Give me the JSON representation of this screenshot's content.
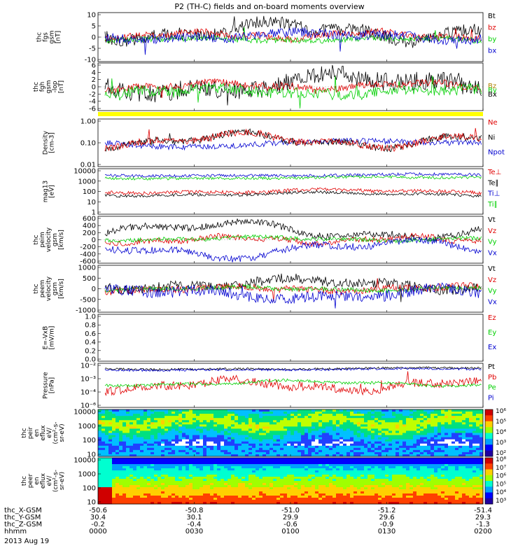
{
  "title": "P2 (TH-C) fields and on-board moments overview",
  "time_axis": {
    "rows": [
      {
        "label": "thc_X-GSM",
        "values": [
          "-50.6",
          "-50.8",
          "-51.0",
          "-51.2",
          "-51.4"
        ]
      },
      {
        "label": "thc_Y-GSM",
        "values": [
          "30.4",
          "30.1",
          "29.9",
          "29.6",
          "29.3"
        ]
      },
      {
        "label": "thc_Z-GSM",
        "values": [
          "-0.2",
          "-0.4",
          "-0.6",
          "-0.9",
          "-1.3"
        ]
      },
      {
        "label": "hhmm",
        "values": [
          "0000",
          "0030",
          "0100",
          "0130",
          "0200"
        ]
      }
    ],
    "date": "2013 Aug 19"
  },
  "colors": {
    "black": "#000000",
    "red": "#e00000",
    "green": "#00d000",
    "blue": "#0000d0",
    "yellow": "#ffff00"
  },
  "chart_data": [
    {
      "type": "line",
      "ylabel": [
        "thc",
        "fgs",
        "gsm",
        "[nT]"
      ],
      "ylim": [
        -10,
        10
      ],
      "yticks": [
        "10",
        "5",
        "0",
        "-5",
        "-10"
      ],
      "legend": [
        "Bt",
        "bz",
        "by",
        "bx"
      ],
      "series": [
        {
          "name": "Bt",
          "color": "#000000"
        },
        {
          "name": "bz",
          "color": "#e00000"
        },
        {
          "name": "by",
          "color": "#00d000"
        },
        {
          "name": "bx",
          "color": "#0000d0"
        }
      ]
    },
    {
      "type": "line",
      "ylabel": [
        "thc",
        "fgh",
        "gsm",
        "-lop",
        "[nT]"
      ],
      "ylim": [
        -6,
        6
      ],
      "yticks": [
        "6",
        "4",
        "2",
        "0",
        "-2",
        "-4",
        "-6"
      ],
      "legend": [
        "Bz",
        "By",
        "Bx"
      ],
      "series": [
        {
          "name": "Bz",
          "color": "#e00000"
        },
        {
          "name": "By",
          "color": "#00d000"
        },
        {
          "name": "Bx",
          "color": "#000000"
        }
      ]
    },
    {
      "type": "bar",
      "note": "yellow quality flag bar"
    },
    {
      "type": "line",
      "scale": "log",
      "ylabel": [
        "Density",
        "[cm-3]"
      ],
      "ylim": [
        0.01,
        10
      ],
      "yticks": [
        "1.00",
        "0.10",
        "0.01"
      ],
      "legend": [
        "Ne",
        "Ni",
        "Npot"
      ],
      "series": [
        {
          "name": "Ne",
          "color": "#e00000"
        },
        {
          "name": "Ni",
          "color": "#000000"
        },
        {
          "name": "Npot",
          "color": "#0000d0"
        }
      ]
    },
    {
      "type": "line",
      "scale": "log",
      "ylabel": [
        "mag13",
        "[eV]"
      ],
      "ylim": [
        1,
        10000
      ],
      "yticks": [
        "10000",
        "1000",
        "100",
        "10",
        "1"
      ],
      "legend": [
        "Te⊥",
        "Te∥",
        "Ti⊥",
        "Ti∥"
      ],
      "series": [
        {
          "name": "Te⊥",
          "color": "#e00000"
        },
        {
          "name": "Te∥",
          "color": "#000000"
        },
        {
          "name": "Ti⊥",
          "color": "#0000d0"
        },
        {
          "name": "Ti∥",
          "color": "#00d000"
        }
      ]
    },
    {
      "type": "line",
      "ylabel": [
        "thc",
        "peim",
        "velocity",
        "gsm",
        "[km/s]"
      ],
      "ylim": [
        -600,
        600
      ],
      "yticks": [
        "600",
        "400",
        "200",
        "0",
        "-200",
        "-400",
        "-600"
      ],
      "legend": [
        "Vt",
        "Vz",
        "Vy",
        "Vx"
      ],
      "series": [
        {
          "name": "Vt",
          "color": "#000000"
        },
        {
          "name": "Vz",
          "color": "#e00000"
        },
        {
          "name": "Vy",
          "color": "#00d000"
        },
        {
          "name": "Vx",
          "color": "#0000d0"
        }
      ]
    },
    {
      "type": "line",
      "ylabel": [
        "thc",
        "peem",
        "velocity",
        "gsm",
        "[km/s]"
      ],
      "ylim": [
        -1000,
        1000
      ],
      "yticks": [
        "1000",
        "500",
        "0",
        "-500",
        "-1000"
      ],
      "legend": [
        "Vt",
        "Vz",
        "Vy",
        "Vx"
      ],
      "series": [
        {
          "name": "Vt",
          "color": "#000000"
        },
        {
          "name": "Vz",
          "color": "#e00000"
        },
        {
          "name": "Vy",
          "color": "#00d000"
        },
        {
          "name": "Vx",
          "color": "#0000d0"
        }
      ]
    },
    {
      "type": "line",
      "ylabel": [
        "E=-VxB",
        "[mV/m]"
      ],
      "ylim": [
        0,
        1
      ],
      "yticks": [
        "1.0",
        "0.8",
        "0.6",
        "0.4",
        "0.2",
        "0.0"
      ],
      "legend": [
        "Ez",
        "Ey",
        "Ex"
      ],
      "series": [
        {
          "name": "Ez",
          "color": "#e00000"
        },
        {
          "name": "Ey",
          "color": "#00d000"
        },
        {
          "name": "Ex",
          "color": "#0000d0"
        }
      ]
    },
    {
      "type": "line",
      "scale": "log",
      "ylabel": [
        "Pressure",
        "[nPa]"
      ],
      "ylim": [
        1e-06,
        0.1
      ],
      "yticks": [
        "10⁻²",
        "10⁻³",
        "10⁻⁴",
        "10⁻⁶"
      ],
      "legend": [
        "Pt",
        "Pb",
        "Pe",
        "Pi"
      ],
      "series": [
        {
          "name": "Pt",
          "color": "#000000"
        },
        {
          "name": "Pb",
          "color": "#e00000"
        },
        {
          "name": "Pe",
          "color": "#00d000"
        },
        {
          "name": "Pi",
          "color": "#0000d0"
        }
      ]
    },
    {
      "type": "heatmap",
      "scale": "log",
      "ylabel": [
        "thc",
        "peir",
        "en",
        "eflux",
        "eV/",
        "(cm²-s-",
        "sr-eV)"
      ],
      "ylim": [
        5,
        20000
      ],
      "yticks": [
        "10000",
        "1000",
        "100",
        "10"
      ],
      "colorbar_ticks": [
        "10⁶",
        "10⁵",
        "10⁴",
        "10³",
        "10²"
      ]
    },
    {
      "type": "heatmap",
      "scale": "log",
      "ylabel": [
        "thc",
        "peer",
        "en",
        "eflux",
        "eV/",
        "(cm²-s-",
        "sr-eV)"
      ],
      "ylim": [
        5,
        20000
      ],
      "yticks": [
        "10000",
        "1000",
        "100",
        "10"
      ],
      "colorbar_ticks": [
        "10⁸",
        "10⁷",
        "10⁶",
        "10⁵",
        "10⁴",
        "10³"
      ]
    }
  ]
}
